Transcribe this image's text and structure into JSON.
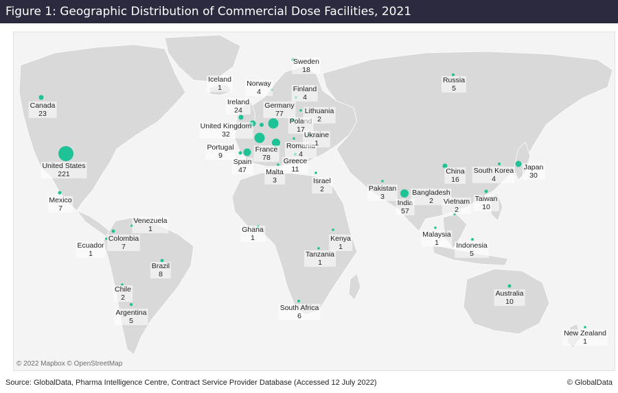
{
  "title": "Figure 1: Geographic Distribution of Commercial Dose Facilities, 2021",
  "attribution": "© 2022 Mapbox © OpenStreetMap",
  "source": "Source: GlobalData, Pharma Intelligence Centre, Contract Service Provider Database (Accessed 12 July 2022)",
  "copyright": "© GlobalData",
  "colors": {
    "title_bg": "#2b2a3f",
    "marker": "#1ec295",
    "land": "#d9d9d9",
    "water": "#f3f3f3"
  },
  "countries": [
    {
      "name": "United States",
      "count": "221"
    },
    {
      "name": "France",
      "count": "78"
    },
    {
      "name": "Germany",
      "count": "77"
    },
    {
      "name": "India",
      "count": "57"
    },
    {
      "name": "Spain",
      "count": "47"
    },
    {
      "name": "United Kingdom",
      "count": "32"
    },
    {
      "name": "Japan",
      "count": "30"
    },
    {
      "name": "Ireland",
      "count": "24"
    },
    {
      "name": "Canada",
      "count": "23"
    },
    {
      "name": "Sweden",
      "count": "18"
    },
    {
      "name": "Poland",
      "count": "17"
    },
    {
      "name": "China",
      "count": "16"
    },
    {
      "name": "Greece",
      "count": "11"
    },
    {
      "name": "Australia",
      "count": "10"
    },
    {
      "name": "Taiwan",
      "count": "10"
    },
    {
      "name": "Portugal",
      "count": "9"
    },
    {
      "name": "Brazil",
      "count": "8"
    },
    {
      "name": "Mexico",
      "count": "7"
    },
    {
      "name": "Colombia",
      "count": "7"
    },
    {
      "name": "Russia",
      "count": "5"
    },
    {
      "name": "Argentina",
      "count": "5"
    },
    {
      "name": "Indonesia",
      "count": "5"
    },
    {
      "name": "Norway",
      "count": "4"
    },
    {
      "name": "Finland",
      "count": "4"
    },
    {
      "name": "Romania",
      "count": "4"
    },
    {
      "name": "South Korea",
      "count": "4"
    },
    {
      "name": "Malta",
      "count": "3"
    },
    {
      "name": "Pakistan",
      "count": "3"
    },
    {
      "name": "Lithuania",
      "count": "2"
    },
    {
      "name": "Israel",
      "count": "2"
    },
    {
      "name": "Bangladesh",
      "count": "2"
    },
    {
      "name": "Vietnam",
      "count": "2"
    },
    {
      "name": "Chile",
      "count": "2"
    },
    {
      "name": "Iceland",
      "count": "1"
    },
    {
      "name": "Ukraine",
      "count": "1"
    },
    {
      "name": "Venezuela",
      "count": "1"
    },
    {
      "name": "Ecuador",
      "count": "1"
    },
    {
      "name": "Ghana",
      "count": "1"
    },
    {
      "name": "Kenya",
      "count": "1"
    },
    {
      "name": "Tanzania",
      "count": "1"
    },
    {
      "name": "Malaysia",
      "count": "1"
    },
    {
      "name": "South Africa",
      "count": "6"
    },
    {
      "name": "New Zealand",
      "count": "1"
    }
  ]
}
